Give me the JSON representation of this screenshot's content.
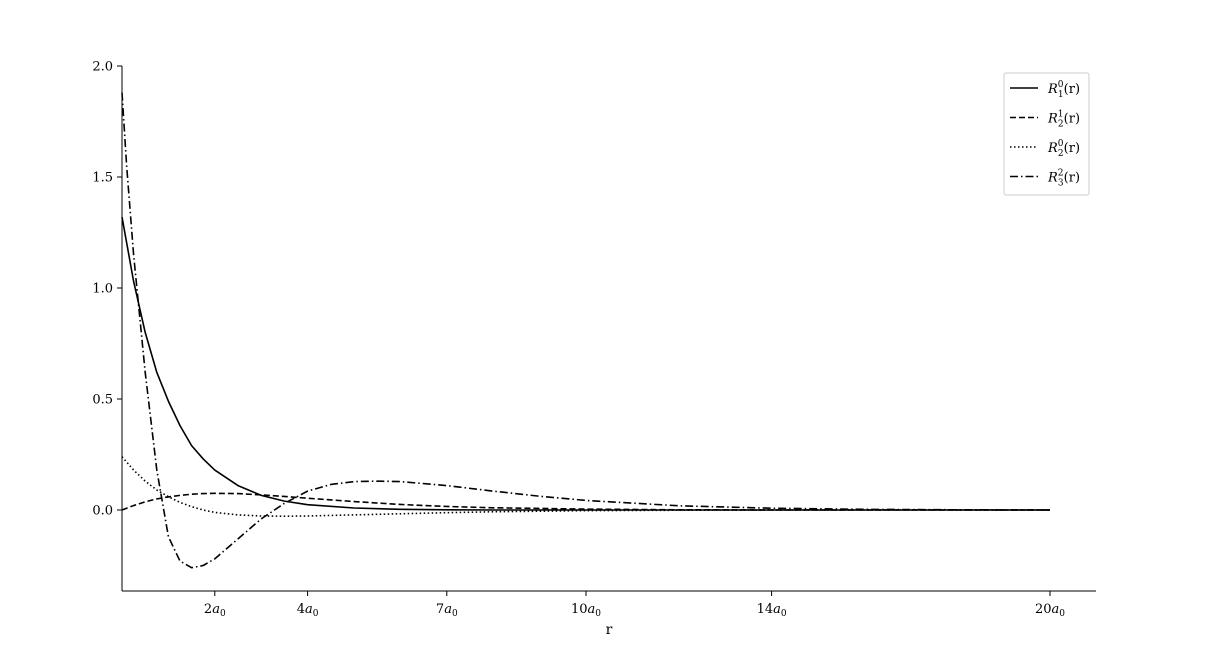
{
  "chart_data": {
    "type": "line",
    "xlabel": "r",
    "ylabel": "",
    "xlim": [
      0,
      20.5
    ],
    "ylim": [
      -0.37,
      2.0
    ],
    "x_ticks": [
      {
        "value": 2,
        "coef": "2",
        "var": "a",
        "sub": "0"
      },
      {
        "value": 4,
        "coef": "4",
        "var": "a",
        "sub": "0"
      },
      {
        "value": 7,
        "coef": "7",
        "var": "a",
        "sub": "0"
      },
      {
        "value": 10,
        "coef": "10",
        "var": "a",
        "sub": "0"
      },
      {
        "value": 14,
        "coef": "14",
        "var": "a",
        "sub": "0"
      },
      {
        "value": 20,
        "coef": "20",
        "var": "a",
        "sub": "0"
      }
    ],
    "y_ticks": [
      {
        "value": 0.0,
        "label": "0.0"
      },
      {
        "value": 0.5,
        "label": "0.5"
      },
      {
        "value": 1.0,
        "label": "1.0"
      },
      {
        "value": 1.5,
        "label": "1.5"
      },
      {
        "value": 2.0,
        "label": "2.0"
      }
    ],
    "grid": false,
    "legend_position": "top-right",
    "series": [
      {
        "name": "R_1^0(r)",
        "label": {
          "sym": "R",
          "sup": "0",
          "sub": "1",
          "tail": "(r)"
        },
        "style": "solid",
        "x": [
          0,
          0.25,
          0.5,
          0.75,
          1.0,
          1.25,
          1.5,
          1.75,
          2.0,
          2.5,
          3.0,
          3.5,
          4.0,
          5.0,
          6.0,
          7.0,
          8.0,
          10.0,
          12.0,
          14.0,
          16.0,
          18.0,
          20.0
        ],
        "y": [
          1.32,
          1.03,
          0.8,
          0.62,
          0.49,
          0.38,
          0.29,
          0.23,
          0.18,
          0.11,
          0.066,
          0.04,
          0.024,
          0.009,
          0.003,
          0.001,
          0.0,
          0.0,
          0.0,
          0.0,
          0.0,
          0.0,
          0.0
        ]
      },
      {
        "name": "R_2^1(r)",
        "label": {
          "sym": "R",
          "sup": "1",
          "sub": "2",
          "tail": "(r)"
        },
        "style": "dashed",
        "x": [
          0,
          0.25,
          0.5,
          0.75,
          1.0,
          1.25,
          1.5,
          1.75,
          2.0,
          2.5,
          3.0,
          3.5,
          4.0,
          5.0,
          6.0,
          7.0,
          8.0,
          10.0,
          12.0,
          14.0,
          16.0,
          18.0,
          20.0
        ],
        "y": [
          0.0,
          0.02,
          0.037,
          0.05,
          0.059,
          0.066,
          0.071,
          0.074,
          0.075,
          0.074,
          0.068,
          0.061,
          0.053,
          0.038,
          0.025,
          0.016,
          0.01,
          0.004,
          0.001,
          0.0,
          0.0,
          0.0,
          0.0
        ]
      },
      {
        "name": "R_2^0(r)",
        "label": {
          "sym": "R",
          "sup": "0",
          "sub": "2",
          "tail": "(r)"
        },
        "style": "dotted",
        "x": [
          0,
          0.25,
          0.5,
          0.75,
          1.0,
          1.25,
          1.5,
          1.75,
          2.0,
          2.5,
          3.0,
          3.5,
          4.0,
          5.0,
          6.0,
          7.0,
          8.0,
          10.0,
          12.0,
          14.0,
          16.0,
          18.0,
          20.0
        ],
        "y": [
          0.24,
          0.18,
          0.13,
          0.09,
          0.06,
          0.034,
          0.015,
          0.0,
          -0.011,
          -0.022,
          -0.027,
          -0.028,
          -0.027,
          -0.022,
          -0.017,
          -0.012,
          -0.008,
          -0.003,
          -0.001,
          0.0,
          0.0,
          0.0,
          0.0
        ]
      },
      {
        "name": "R_3^2(r)",
        "label": {
          "sym": "R",
          "sup": "2",
          "sub": "3",
          "tail": "(r)"
        },
        "style": "dashdot",
        "x": [
          0,
          0.1,
          0.25,
          0.5,
          0.75,
          1.0,
          1.25,
          1.5,
          1.75,
          2.0,
          2.5,
          3.0,
          3.5,
          4.0,
          4.5,
          5.0,
          5.5,
          6.0,
          7.0,
          8.0,
          9.0,
          10.0,
          12.0,
          14.0,
          16.0,
          18.0,
          20.0
        ],
        "y": [
          1.88,
          1.55,
          1.15,
          0.62,
          0.18,
          -0.12,
          -0.23,
          -0.26,
          -0.25,
          -0.22,
          -0.13,
          -0.04,
          0.03,
          0.085,
          0.115,
          0.128,
          0.13,
          0.128,
          0.11,
          0.085,
          0.062,
          0.043,
          0.019,
          0.008,
          0.003,
          0.001,
          0.0
        ]
      }
    ]
  }
}
